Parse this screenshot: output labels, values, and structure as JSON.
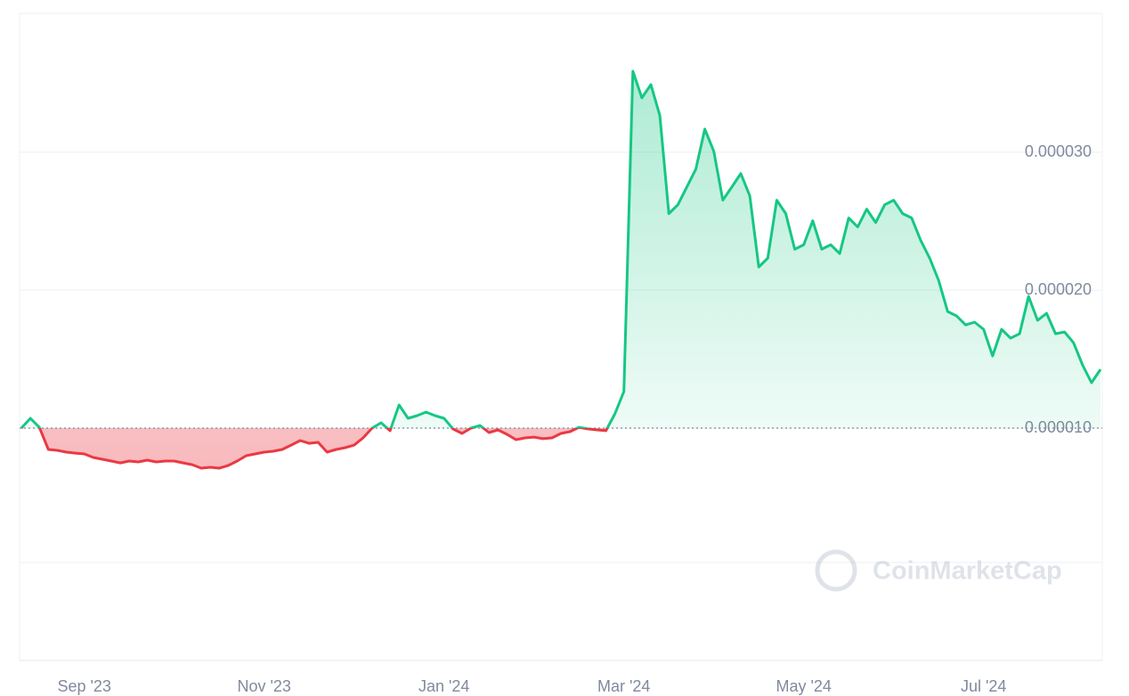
{
  "chart_data": {
    "type": "line",
    "watermark": "CoinMarketCap",
    "up_color": "#16c784",
    "down_color": "#ea3943",
    "categories": [
      null,
      null,
      null,
      null,
      null,
      null,
      null,
      "Sep '23",
      null,
      null,
      null,
      null,
      null,
      null,
      null,
      null,
      null,
      null,
      null,
      null,
      null,
      null,
      null,
      null,
      null,
      null,
      null,
      "Nov '23",
      null,
      null,
      null,
      null,
      null,
      null,
      null,
      null,
      null,
      null,
      null,
      null,
      null,
      null,
      null,
      null,
      null,
      null,
      null,
      "Jan '24",
      null,
      null,
      null,
      null,
      null,
      null,
      null,
      null,
      null,
      null,
      null,
      null,
      null,
      null,
      null,
      null,
      null,
      null,
      null,
      "Mar '24",
      null,
      null,
      null,
      null,
      null,
      null,
      null,
      null,
      null,
      null,
      null,
      null,
      null,
      null,
      null,
      null,
      null,
      null,
      null,
      "May '24",
      null,
      null,
      null,
      null,
      null,
      null,
      null,
      null,
      null,
      null,
      null,
      null,
      null,
      null,
      null,
      null,
      null,
      null,
      null,
      "Jul '24",
      null,
      null,
      null,
      null,
      null,
      null,
      null,
      null,
      null,
      null,
      null,
      null,
      null
    ],
    "values": [
      1e-05,
      1.071e-05,
      1.006e-05,
      8.45e-06,
      8.39e-06,
      8.26e-06,
      8.19e-06,
      8.13e-06,
      7.87e-06,
      7.74e-06,
      7.61e-06,
      7.48e-06,
      7.61e-06,
      7.55e-06,
      7.68e-06,
      7.55e-06,
      7.61e-06,
      7.61e-06,
      7.48e-06,
      7.35e-06,
      7.1e-06,
      7.16e-06,
      7.1e-06,
      7.29e-06,
      7.61e-06,
      8e-06,
      8.13e-06,
      8.26e-06,
      8.32e-06,
      8.45e-06,
      8.77e-06,
      9.1e-06,
      8.9e-06,
      8.97e-06,
      8.26e-06,
      8.45e-06,
      8.58e-06,
      8.77e-06,
      9.29e-06,
      1e-05,
      1.039e-05,
      9.81e-06,
      1.168e-05,
      1.071e-05,
      1.09e-05,
      1.116e-05,
      1.09e-05,
      1.071e-05,
      9.94e-06,
      9.61e-06,
      1e-05,
      1.019e-05,
      9.68e-06,
      9.87e-06,
      9.55e-06,
      9.16e-06,
      9.29e-06,
      9.35e-06,
      9.23e-06,
      9.29e-06,
      9.61e-06,
      9.74e-06,
      1.006e-05,
      9.94e-06,
      9.87e-06,
      9.81e-06,
      1.103e-05,
      1.265e-05,
      3.587e-05,
      3.394e-05,
      3.49e-05,
      3.265e-05,
      2.555e-05,
      2.619e-05,
      2.748e-05,
      2.877e-05,
      3.168e-05,
      3.006e-05,
      2.652e-05,
      2.748e-05,
      2.845e-05,
      2.684e-05,
      2.168e-05,
      2.232e-05,
      2.652e-05,
      2.555e-05,
      2.297e-05,
      2.329e-05,
      2.503e-05,
      2.297e-05,
      2.329e-05,
      2.265e-05,
      2.523e-05,
      2.458e-05,
      2.587e-05,
      2.49e-05,
      2.619e-05,
      2.652e-05,
      2.555e-05,
      2.523e-05,
      2.361e-05,
      2.232e-05,
      2.071e-05,
      1.845e-05,
      1.813e-05,
      1.748e-05,
      1.768e-05,
      1.716e-05,
      1.523e-05,
      1.716e-05,
      1.652e-05,
      1.684e-05,
      1.955e-05,
      1.781e-05,
      1.832e-05,
      1.684e-05,
      1.697e-05,
      1.619e-05,
      1.458e-05,
      1.329e-05,
      1.426e-05
    ],
    "ylim": [
      0,
      4e-05
    ],
    "yticks": [
      {
        "value": 1e-05,
        "label": "0.000010"
      },
      {
        "value": 2e-05,
        "label": "0.000020"
      },
      {
        "value": 3e-05,
        "label": "0.000030"
      }
    ],
    "grid": true
  }
}
